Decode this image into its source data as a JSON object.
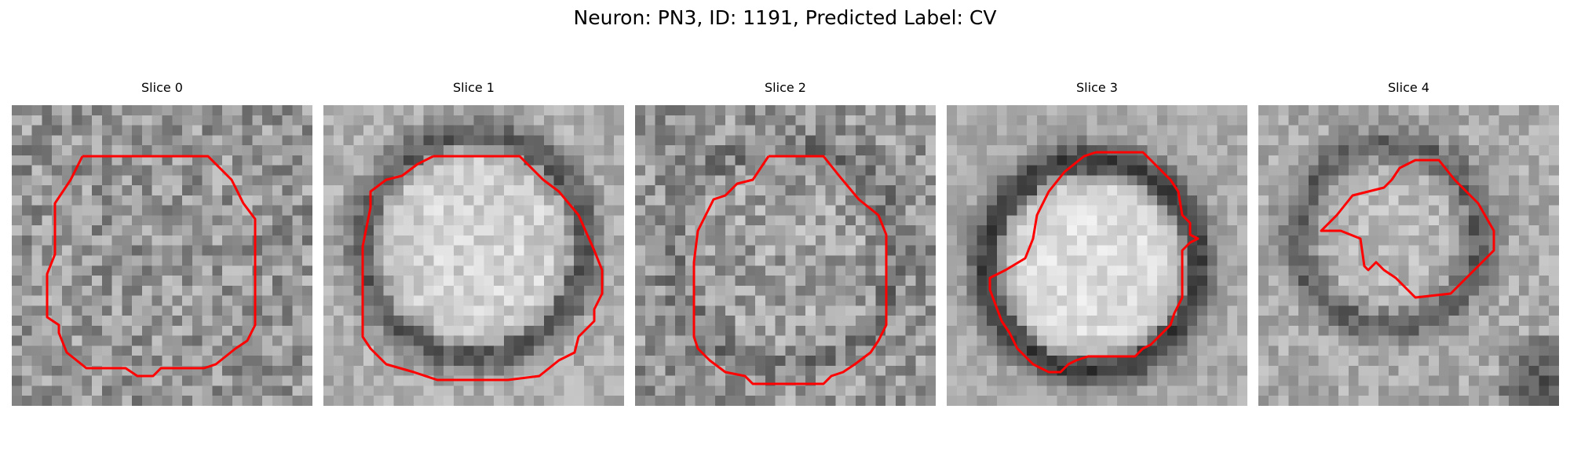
{
  "figure": {
    "title": "Neuron: PN3, ID: 1191, Predicted Label: CV",
    "contour_color": "#ff0000"
  },
  "panels": [
    {
      "title": "Slice 0",
      "image": "noisy-grayscale-patch",
      "contour": "octagonal-contour"
    },
    {
      "title": "Slice 1",
      "image": "light-nucleus-dark-ring",
      "contour": "octagonal-contour"
    },
    {
      "title": "Slice 2",
      "image": "noisy-grayscale-patch",
      "contour": "octagonal-contour"
    },
    {
      "title": "Slice 3",
      "image": "bright-nucleus-dark-ring",
      "contour": "irregular-contour"
    },
    {
      "title": "Slice 4",
      "image": "textured-patch-dark-corner",
      "contour": "irregular-contour"
    }
  ]
}
